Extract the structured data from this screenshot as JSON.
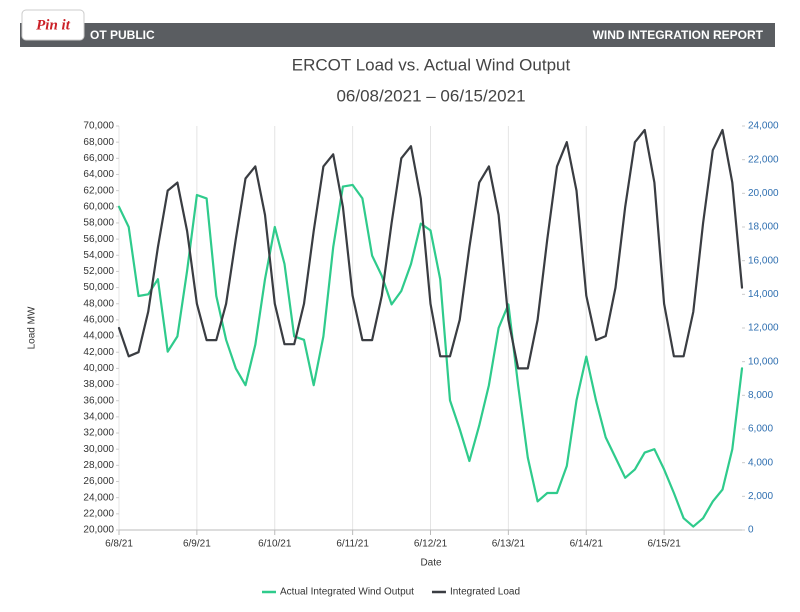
{
  "pin_button": "Pin it",
  "header": {
    "left": "OT PUBLIC",
    "right": "WIND INTEGRATION REPORT"
  },
  "chart_data": {
    "type": "line",
    "title": "ERCOT Load vs. Actual Wind Output",
    "subtitle": "06/08/2021  –  06/15/2021",
    "x_label": "Date",
    "y_label": "Load MW",
    "categories": [
      "6/8/21",
      null,
      null,
      null,
      null,
      null,
      null,
      null,
      "6/9/21",
      null,
      null,
      null,
      null,
      null,
      null,
      null,
      "6/10/21",
      null,
      null,
      null,
      null,
      null,
      null,
      null,
      "6/11/21",
      null,
      null,
      null,
      null,
      null,
      null,
      null,
      "6/12/21",
      null,
      null,
      null,
      null,
      null,
      null,
      null,
      "6/13/21",
      null,
      null,
      null,
      null,
      null,
      null,
      null,
      "6/14/21",
      null,
      null,
      null,
      null,
      null,
      null,
      null,
      "6/15/21",
      null,
      null,
      null,
      null,
      null,
      null,
      null,
      null
    ],
    "series": [
      {
        "name": "Actual Integrated Wind Output",
        "color": "#2fcb8c",
        "axis": "y2",
        "values": [
          19200,
          18000,
          13900,
          14000,
          14900,
          10600,
          11500,
          15400,
          19900,
          19700,
          13900,
          11300,
          9600,
          8600,
          11000,
          14900,
          18000,
          15800,
          11500,
          11300,
          8600,
          11500,
          16800,
          20400,
          20500,
          19700,
          16300,
          15100,
          13400,
          14200,
          15800,
          18200,
          17800,
          14900,
          7700,
          6000,
          4100,
          6200,
          8600,
          12000,
          13400,
          8600,
          4300,
          1700,
          2200,
          2200,
          3800,
          7700,
          10300,
          7700,
          5500,
          4300,
          3100,
          3600,
          4600,
          4800,
          3600,
          2200,
          700,
          200,
          700,
          1700,
          2400,
          4800,
          9600
        ]
      },
      {
        "name": "Integrated Load",
        "color": "#3a3d42",
        "values": [
          45000,
          41500,
          42000,
          47000,
          55000,
          62000,
          63000,
          57000,
          48000,
          43500,
          43500,
          48000,
          56000,
          63500,
          65000,
          59000,
          48000,
          43000,
          43000,
          48000,
          57000,
          65000,
          66500,
          60000,
          49000,
          43500,
          43500,
          49000,
          58000,
          66000,
          67500,
          61000,
          48000,
          41500,
          41500,
          46000,
          55000,
          63000,
          65000,
          59000,
          46000,
          40000,
          40000,
          46000,
          56000,
          65000,
          68000,
          62000,
          49000,
          43500,
          44000,
          50000,
          60000,
          68000,
          69500,
          63000,
          48000,
          41500,
          41500,
          47000,
          58000,
          67000,
          69500,
          63000,
          50000
        ]
      }
    ],
    "ylim": [
      20000,
      70000
    ],
    "yticks": [
      {
        "value": 20000,
        "label": "20,000"
      },
      {
        "value": 22000,
        "label": "22,000"
      },
      {
        "value": 24000,
        "label": "24,000"
      },
      {
        "value": 26000,
        "label": "26,000"
      },
      {
        "value": 28000,
        "label": "28,000"
      },
      {
        "value": 30000,
        "label": "30,000"
      },
      {
        "value": 32000,
        "label": "32,000"
      },
      {
        "value": 34000,
        "label": "34,000"
      },
      {
        "value": 36000,
        "label": "36,000"
      },
      {
        "value": 38000,
        "label": "38,000"
      },
      {
        "value": 40000,
        "label": "40,000"
      },
      {
        "value": 42000,
        "label": "42,000"
      },
      {
        "value": 44000,
        "label": "44,000"
      },
      {
        "value": 46000,
        "label": "46,000"
      },
      {
        "value": 48000,
        "label": "48,000"
      },
      {
        "value": 50000,
        "label": "50,000"
      },
      {
        "value": 52000,
        "label": "52,000"
      },
      {
        "value": 54000,
        "label": "54,000"
      },
      {
        "value": 56000,
        "label": "56,000"
      },
      {
        "value": 58000,
        "label": "58,000"
      },
      {
        "value": 60000,
        "label": "60,000"
      },
      {
        "value": 62000,
        "label": "62,000"
      },
      {
        "value": 64000,
        "label": "64,000"
      },
      {
        "value": 66000,
        "label": "66,000"
      },
      {
        "value": 68000,
        "label": "68,000"
      },
      {
        "value": 70000,
        "label": "70,000"
      }
    ],
    "y2lim": [
      0,
      24000
    ],
    "y2ticks": [
      0,
      {
        "value": 2000,
        "label": "2,000"
      },
      {
        "value": 4000,
        "label": "4,000"
      },
      {
        "value": 6000,
        "label": "6,000"
      },
      {
        "value": 8000,
        "label": "8,000"
      },
      {
        "value": 10000,
        "label": "10,000"
      },
      {
        "value": 12000,
        "label": "12,000"
      },
      {
        "value": 14000,
        "label": "14,000"
      },
      {
        "value": 16000,
        "label": "16,000"
      },
      {
        "value": 18000,
        "label": "18,000"
      },
      {
        "value": 20000,
        "label": "20,000"
      },
      {
        "value": 22000,
        "label": "22,000"
      },
      {
        "value": 24000,
        "label": "24,000"
      }
    ],
    "y2color": "#2f6fb0",
    "grid": "x",
    "legend": "bottom"
  }
}
